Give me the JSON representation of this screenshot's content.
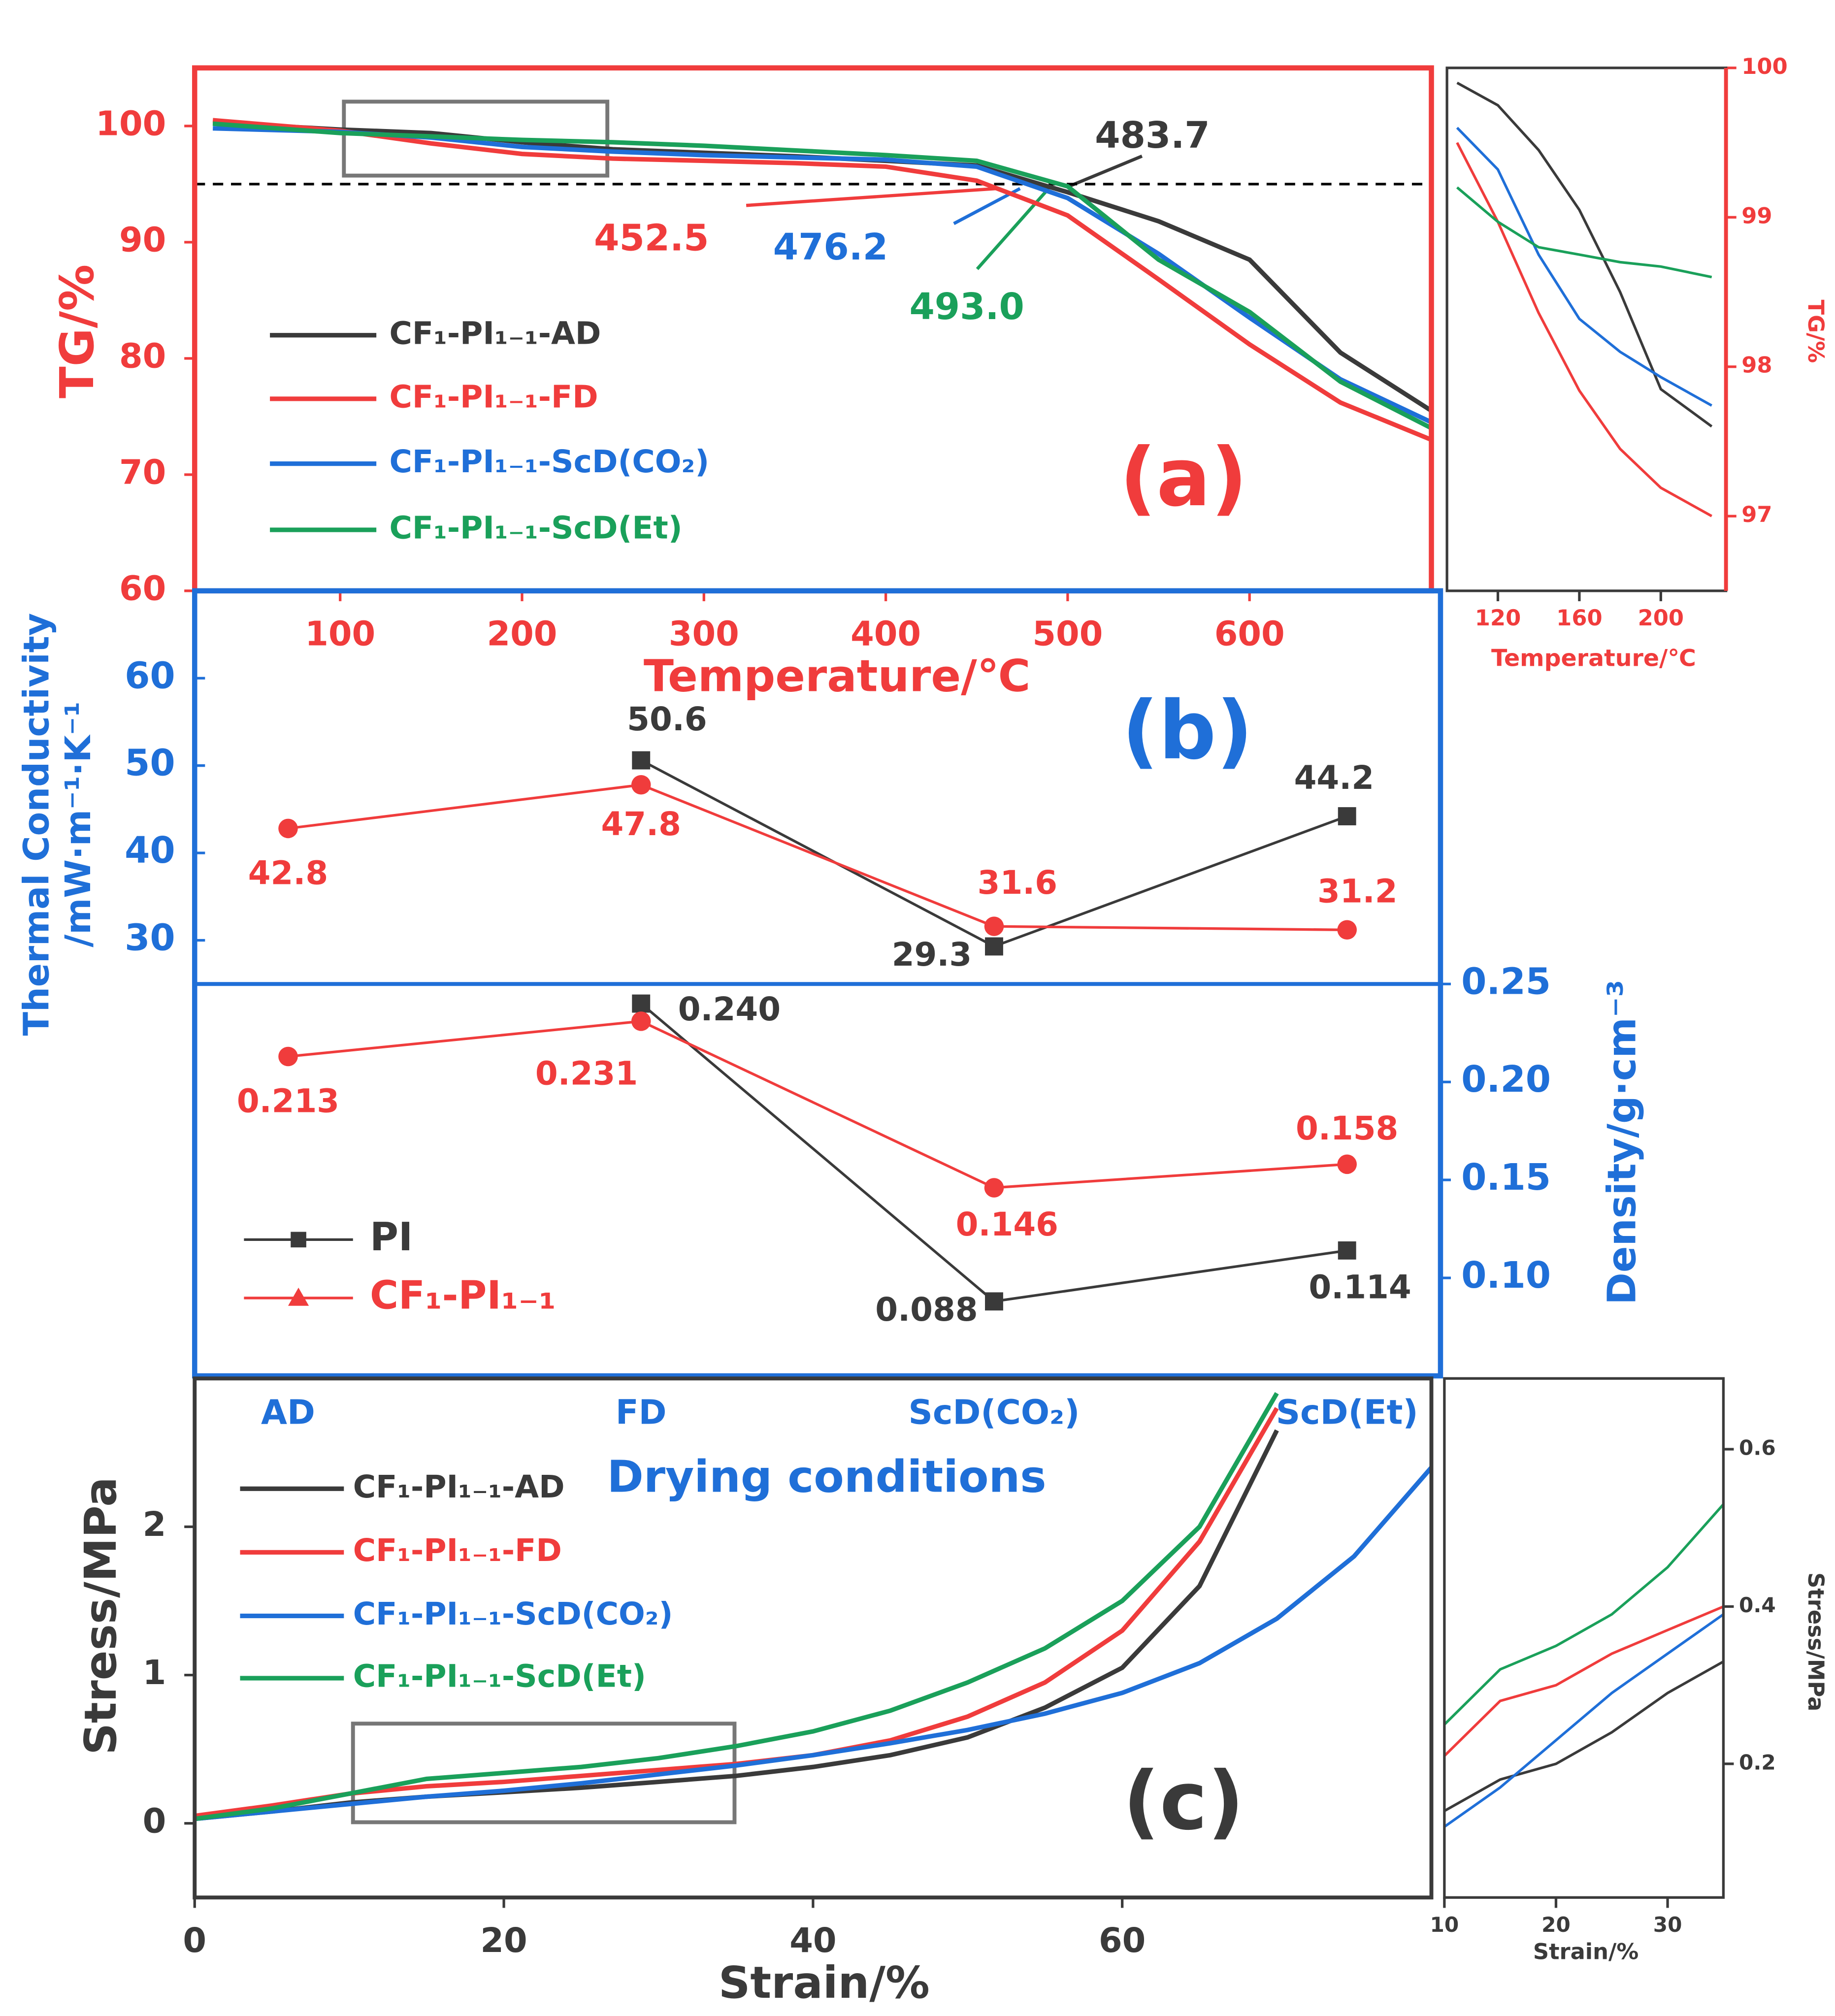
{
  "chart_data": [
    {
      "type": "line",
      "panel_label": "(a)",
      "x_label": "Temperature/℃",
      "y_label": "TG/%",
      "x": [
        30,
        100,
        150,
        200,
        250,
        300,
        350,
        400,
        450,
        500,
        550,
        600,
        650,
        700
      ],
      "series": [
        {
          "name": "CF₁-PI₁₋₁-AD",
          "color": "#3a3a3a",
          "values": [
            100.3,
            99.7,
            99.4,
            98.6,
            98.0,
            97.7,
            97.4,
            97.0,
            96.6,
            94.3,
            91.8,
            88.5,
            80.5,
            75.5
          ]
        },
        {
          "name": "CF₁-PI₁₋₁-FD",
          "color": "#f03c3c",
          "values": [
            100.5,
            99.6,
            98.5,
            97.6,
            97.2,
            97.0,
            96.8,
            96.5,
            95.3,
            92.3,
            86.8,
            81.2,
            76.2,
            73.0
          ]
        },
        {
          "name": "CF₁-PI₁₋₁-ScD(CO₂)",
          "color": "#1f6fd8",
          "values": [
            99.8,
            99.5,
            99.0,
            98.2,
            97.8,
            97.5,
            97.3,
            97.1,
            96.5,
            93.8,
            89.0,
            83.5,
            78.2,
            74.5
          ]
        },
        {
          "name": "CF₁-PI₁₋₁-ScD(Et)",
          "color": "#1aa05a",
          "values": [
            100.2,
            99.4,
            99.1,
            98.8,
            98.6,
            98.3,
            97.9,
            97.5,
            97.0,
            94.8,
            88.5,
            84.0,
            78.0,
            74.0
          ]
        }
      ],
      "xlim": [
        20,
        700
      ],
      "xticks": [
        100,
        200,
        300,
        400,
        500,
        600
      ],
      "ylim": [
        60,
        105
      ],
      "yticks": [
        60,
        70,
        80,
        90,
        100
      ],
      "hline": 95,
      "annotations": [
        "483.7",
        "452.5",
        "476.2",
        "493.0"
      ]
    },
    {
      "type": "line",
      "x_label": "Temperature/℃",
      "y_label": "TG/%",
      "x": [
        100,
        120,
        140,
        160,
        180,
        200,
        225
      ],
      "series": [
        {
          "color": "#3a3a3a",
          "values": [
            99.9,
            99.75,
            99.45,
            99.05,
            98.5,
            97.85,
            97.6
          ]
        },
        {
          "color": "#f03c3c",
          "values": [
            99.5,
            98.97,
            98.36,
            97.84,
            97.45,
            97.19,
            97.0
          ]
        },
        {
          "color": "#1f6fd8",
          "values": [
            99.6,
            99.32,
            98.75,
            98.32,
            98.1,
            97.93,
            97.74
          ]
        },
        {
          "color": "#1aa05a",
          "values": [
            99.2,
            98.97,
            98.8,
            98.75,
            98.7,
            98.67,
            98.6
          ]
        }
      ],
      "xlim": [
        95,
        232
      ],
      "xticks": [
        120,
        160,
        200
      ],
      "ylim": [
        96.5,
        100
      ],
      "yticks": [
        97,
        98,
        99,
        100
      ]
    },
    {
      "type": "category-line",
      "panel_label": "(b)",
      "x_label": "Drying conditions",
      "y_label": [
        "Thermal Conductivity",
        "/mW·m⁻¹·K⁻¹"
      ],
      "y2_label": "Density/g·cm⁻³",
      "categories": [
        "AD",
        "FD",
        "ScD(CO₂)",
        "ScD(Et)"
      ],
      "series": [
        {
          "name": "PI",
          "color": "#3a3a3a",
          "marker": "square",
          "axis": "y2",
          "values": [
            null,
            0.24,
            0.088,
            0.114
          ],
          "value_labels": [
            null,
            "0.240",
            "0.088",
            "0.114"
          ]
        },
        {
          "name": "CF₁-PI₁₋₁",
          "color": "#f03c3c",
          "marker": "circle",
          "legend_marker": "triangle",
          "axis": "y2",
          "values": [
            0.213,
            0.231,
            0.146,
            0.158
          ]
        },
        {
          "color": "#3a3a3a",
          "marker": "square",
          "values": [
            null,
            50.6,
            29.3,
            44.2
          ]
        },
        {
          "color": "#f03c3c",
          "marker": "circle",
          "values": [
            42.8,
            47.8,
            31.6,
            31.2
          ]
        }
      ],
      "ylim": [
        25,
        70
      ],
      "yticks": [
        30,
        40,
        50,
        60
      ],
      "y2lim": [
        0.05,
        0.25
      ],
      "y2ticks": [
        {
          "value": 0.1,
          "label": "0.10"
        },
        {
          "value": 0.15,
          "label": "0.15"
        },
        {
          "value": 0.2,
          "label": "0.20"
        },
        {
          "value": 0.25,
          "label": "0.25"
        }
      ]
    },
    {
      "type": "line",
      "panel_label": "(c)",
      "x_label": "Strain/%",
      "y_label": "Stress/MPa",
      "x": [
        0,
        5,
        10,
        15,
        20,
        25,
        30,
        35,
        40,
        45,
        50,
        55,
        60,
        65,
        70,
        75,
        80
      ],
      "series": [
        {
          "name": "CF₁-PI₁₋₁-AD",
          "color": "#3a3a3a",
          "values": [
            0.03,
            0.08,
            0.14,
            0.18,
            0.21,
            0.24,
            0.28,
            0.32,
            0.38,
            0.46,
            0.58,
            0.78,
            1.05,
            1.6,
            2.65,
            null,
            null
          ]
        },
        {
          "name": "CF₁-PI₁₋₁-FD",
          "color": "#f03c3c",
          "values": [
            0.05,
            0.12,
            0.2,
            0.25,
            0.28,
            0.32,
            0.36,
            0.4,
            0.46,
            0.56,
            0.72,
            0.95,
            1.3,
            1.9,
            2.8,
            null,
            null
          ]
        },
        {
          "name": "CF₁-PI₁₋₁-ScD(CO₂)",
          "color": "#1f6fd8",
          "values": [
            0.03,
            0.08,
            0.13,
            0.18,
            0.22,
            0.27,
            0.33,
            0.39,
            0.46,
            0.54,
            0.63,
            0.74,
            0.88,
            1.08,
            1.38,
            1.8,
            2.4
          ]
        },
        {
          "name": "CF₁-PI₁₋₁-ScD(Et)",
          "color": "#1aa05a",
          "values": [
            0.03,
            0.1,
            0.2,
            0.3,
            0.34,
            0.38,
            0.44,
            0.52,
            0.62,
            0.76,
            0.95,
            1.18,
            1.5,
            2.0,
            2.9,
            null,
            null
          ]
        }
      ],
      "xlim": [
        0,
        80
      ],
      "xticks": [
        0,
        20,
        40,
        60
      ],
      "ylim": [
        -0.5,
        3
      ],
      "yticks": [
        0,
        1,
        2
      ]
    },
    {
      "type": "line",
      "x_label": "Strain/%",
      "y_label": "Stress/MPa",
      "x": [
        10,
        15,
        20,
        25,
        30,
        35
      ],
      "series": [
        {
          "color": "#3a3a3a",
          "values": [
            0.14,
            0.18,
            0.2,
            0.24,
            0.29,
            0.33
          ]
        },
        {
          "color": "#f03c3c",
          "values": [
            0.21,
            0.28,
            0.3,
            0.34,
            0.37,
            0.4
          ]
        },
        {
          "color": "#1f6fd8",
          "values": [
            0.12,
            0.17,
            0.23,
            0.29,
            0.34,
            0.39
          ]
        },
        {
          "color": "#1aa05a",
          "values": [
            0.25,
            0.32,
            0.35,
            0.39,
            0.45,
            0.53
          ]
        }
      ],
      "xlim": [
        10,
        35
      ],
      "xticks": [
        10,
        20,
        30
      ],
      "ylim": [
        0.03,
        0.69
      ],
      "yticks": [
        0.2,
        0.4,
        0.6
      ]
    }
  ]
}
